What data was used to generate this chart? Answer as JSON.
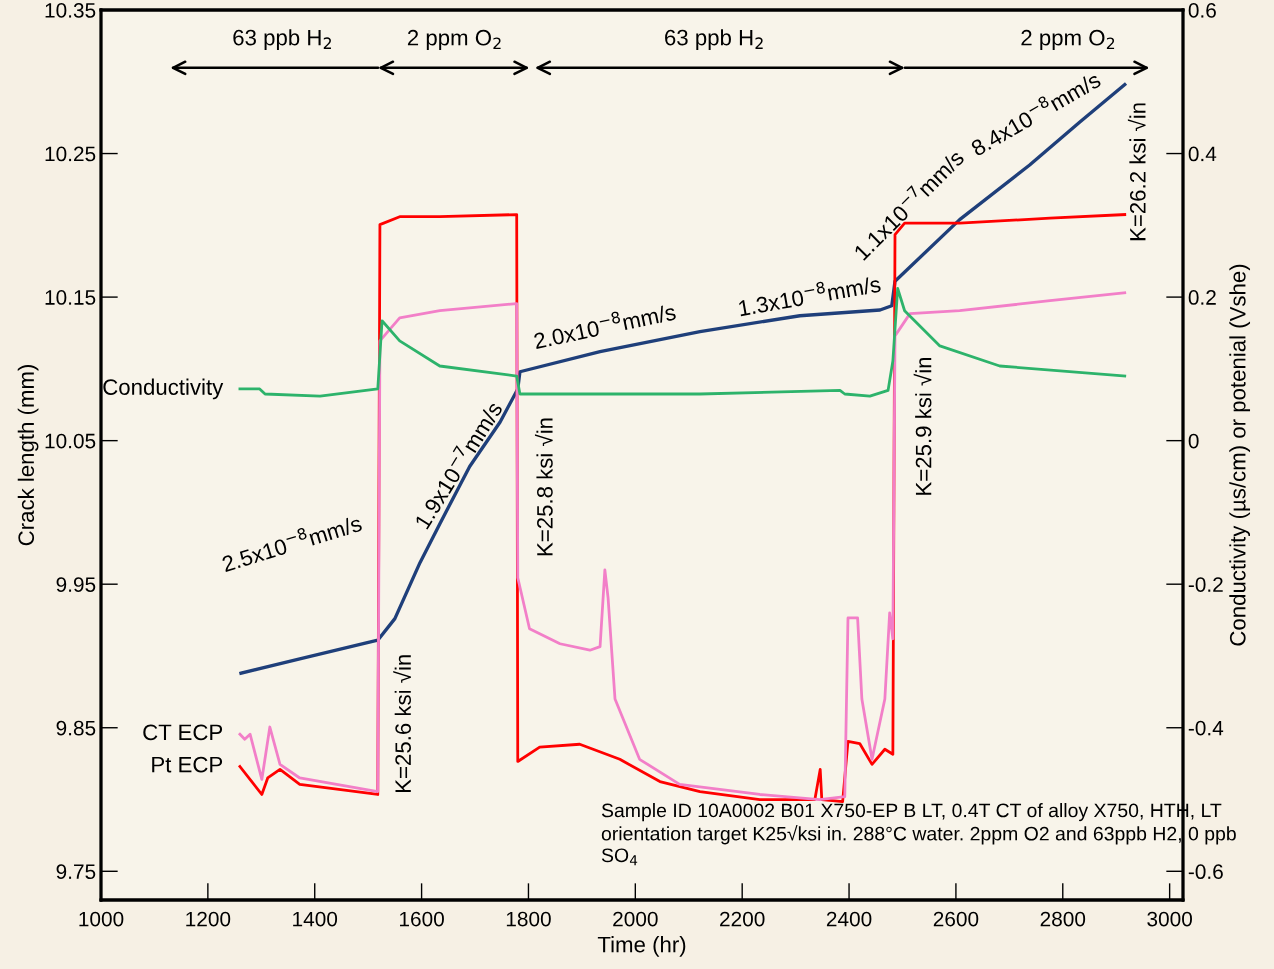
{
  "chart_data": {
    "type": "line",
    "xlabel": "Time (hr)",
    "ylabel": "Crack length (mm)",
    "y2label": "Conductivity (µs/cm) or potenial (Vshe)",
    "xlim": [
      1000,
      3025
    ],
    "xticks": [
      1000,
      1200,
      1400,
      1600,
      1800,
      2000,
      2200,
      2400,
      2600,
      2800,
      3000
    ],
    "ylim": [
      9.73,
      10.35
    ],
    "yticks": [
      9.75,
      9.85,
      9.95,
      10.05,
      10.15,
      10.25,
      10.35
    ],
    "y2lim": [
      -0.64,
      0.6
    ],
    "y2ticks": [
      -0.6,
      -0.4,
      -0.2,
      0,
      0.2,
      0.4,
      0.6
    ],
    "grid": false,
    "legend": false,
    "marker": "none",
    "line_style": "solid",
    "series": [
      {
        "color": "#1f3f7a",
        "x": [
          1262,
          1372,
          1518,
          1550,
          1597,
          1634,
          1690,
          1747,
          1780,
          1784,
          1934,
          2121,
          2308,
          2458,
          2480,
          2486,
          2607,
          2738,
          2832,
          2916
        ],
        "values": [
          9.888,
          9.898,
          9.911,
          9.926,
          9.965,
          9.992,
          10.032,
          10.063,
          10.086,
          10.098,
          10.112,
          10.126,
          10.137,
          10.141,
          10.144,
          10.161,
          10.204,
          10.242,
          10.272,
          10.298
        ]
      },
      {
        "name": "Pt ECP",
        "axis": "y2",
        "color": "#ff0000",
        "x": [
          1260,
          1301,
          1312,
          1335,
          1372,
          1518,
          1522,
          1559,
          1634,
          1778,
          1780,
          1821,
          1896,
          1971,
          2046,
          2121,
          2233,
          2336,
          2346,
          2349,
          2388,
          2398,
          2420,
          2443,
          2467,
          2482,
          2486,
          2504,
          2607,
          2776,
          2916
        ],
        "values": [
          -0.454,
          -0.493,
          -0.47,
          -0.458,
          -0.479,
          -0.493,
          0.301,
          0.312,
          0.312,
          0.315,
          -0.447,
          -0.427,
          -0.423,
          -0.444,
          -0.475,
          -0.489,
          -0.5,
          -0.5,
          -0.458,
          -0.5,
          -0.503,
          -0.419,
          -0.422,
          -0.451,
          -0.43,
          -0.437,
          0.287,
          0.303,
          0.303,
          0.31,
          0.315
        ]
      },
      {
        "name": "CT ECP",
        "axis": "y2",
        "color": "#f27fc8",
        "x": [
          1260,
          1269,
          1279,
          1301,
          1316,
          1335,
          1372,
          1518,
          1522,
          1559,
          1634,
          1778,
          1780,
          1802,
          1859,
          1915,
          1934,
          1943,
          1949,
          1962,
          2008,
          2083,
          2233,
          2345,
          2392,
          2398,
          2416,
          2424,
          2443,
          2467,
          2476,
          2482,
          2486,
          2514,
          2607,
          2776,
          2916
        ],
        "values": [
          -0.409,
          -0.416,
          -0.409,
          -0.472,
          -0.399,
          -0.451,
          -0.47,
          -0.489,
          0.139,
          0.171,
          0.181,
          0.191,
          -0.191,
          -0.262,
          -0.283,
          -0.292,
          -0.287,
          -0.18,
          -0.219,
          -0.36,
          -0.444,
          -0.479,
          -0.493,
          -0.5,
          -0.496,
          -0.247,
          -0.247,
          -0.36,
          -0.444,
          -0.36,
          -0.24,
          -0.276,
          0.146,
          0.177,
          0.181,
          0.195,
          0.206
        ]
      },
      {
        "name": "Conductivity",
        "axis": "y2",
        "color": "#2db36b",
        "x": [
          1260,
          1297,
          1307,
          1410,
          1518,
          1526,
          1559,
          1634,
          1778,
          1784,
          1934,
          2121,
          2383,
          2392,
          2439,
          2473,
          2482,
          2491,
          2504,
          2570,
          2682,
          2916
        ],
        "values": [
          0.072,
          0.072,
          0.065,
          0.062,
          0.072,
          0.167,
          0.139,
          0.104,
          0.09,
          0.065,
          0.065,
          0.065,
          0.07,
          0.065,
          0.062,
          0.07,
          0.111,
          0.212,
          0.181,
          0.132,
          0.104,
          0.09
        ]
      }
    ],
    "annotations": [
      "63 ppb H$_{2}$",
      "2 ppm O$_{2}$",
      "63 ppb H$_{2}$",
      "2 ppm O$_{2}$",
      "2.5x10$^{−8}$mm/s",
      "1.9x10$^{−7}$mm/s",
      "2.0x10$^{−8}$mm/s",
      "1.3x10$^{−8}$mm/s",
      "1.1x10$^{−7}$mm/s",
      "8.4x10$^{−8}$mm/s",
      "K=25.6 ksi √in",
      "K=25.8 ksi √in",
      "K=25.9 ksi √in",
      "K=26.2 ksi √in",
      "Sample ID 10A0002 B01 X750-EP B LT, 0.4T CT of alloy X750, HTH, LT orientation target K25√ksi in. 288°C water. 2ppm O2 and 63ppb H2, 0 ppb SO$_{4}$"
    ]
  }
}
